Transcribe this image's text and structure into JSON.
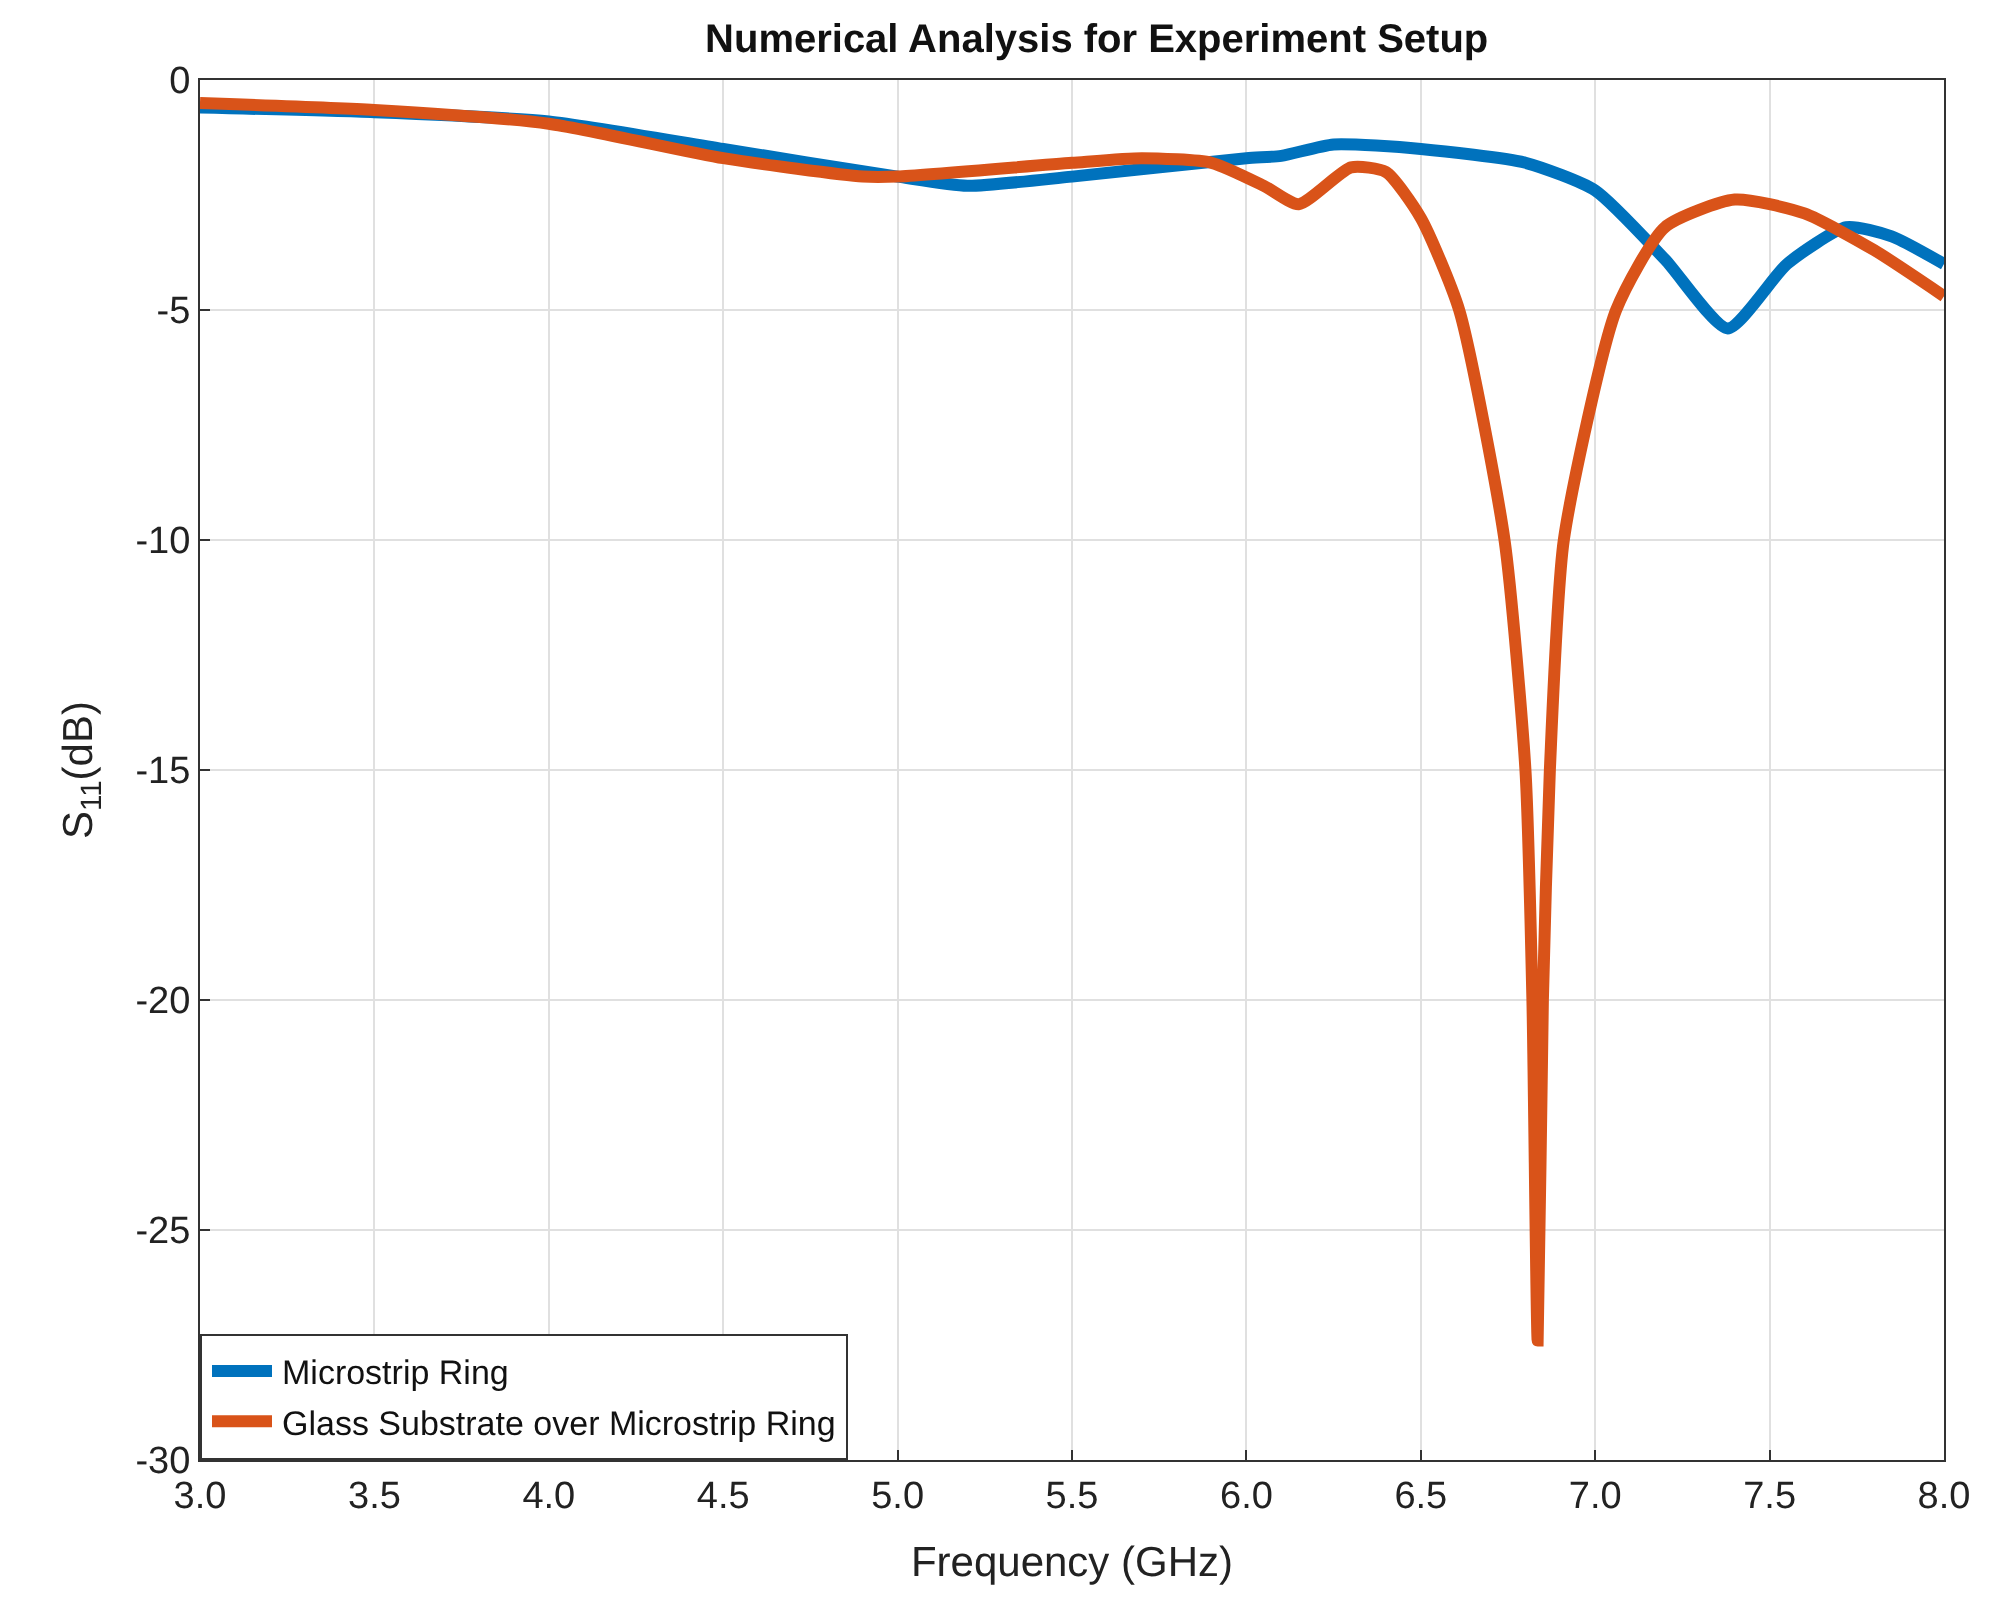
{
  "chart_data": {
    "type": "line",
    "title": "Numerical Analysis for Experiment Setup",
    "xlabel": "Frequency (GHz)",
    "ylabel": "S$_{11}$(dB)",
    "xlim": [
      3,
      8
    ],
    "ylim": [
      -30,
      0
    ],
    "xticks": [
      {
        "value": 3,
        "label": "3.0"
      },
      {
        "value": 3.5,
        "label": "3.5"
      },
      {
        "value": 4,
        "label": "4.0"
      },
      {
        "value": 4.5,
        "label": "4.5"
      },
      {
        "value": 5,
        "label": "5.0"
      },
      {
        "value": 5.5,
        "label": "5.5"
      },
      {
        "value": 6,
        "label": "6.0"
      },
      {
        "value": 6.5,
        "label": "6.5"
      },
      {
        "value": 7,
        "label": "7.0"
      },
      {
        "value": 7.5,
        "label": "7.5"
      },
      {
        "value": 8,
        "label": "8.0"
      }
    ],
    "yticks": [
      -30,
      -25,
      -20,
      -15,
      -10,
      -5,
      0
    ],
    "grid": true,
    "legend": "bottom left",
    "line_style": "solid",
    "marker": "none",
    "series": [
      {
        "name": "Microstrip Ring",
        "color": "#0072bd",
        "x": [
          3.0,
          3.5,
          4.0,
          4.5,
          5.0,
          5.2,
          5.5,
          6.0,
          6.1,
          6.25,
          6.5,
          6.8,
          7.0,
          7.2,
          7.38,
          7.55,
          7.72,
          7.85,
          8.0
        ],
        "values": [
          -0.6,
          -0.7,
          -0.9,
          -1.5,
          -2.1,
          -2.3,
          -2.1,
          -1.7,
          -1.65,
          -1.4,
          -1.5,
          -1.8,
          -2.4,
          -3.9,
          -5.4,
          -4.0,
          -3.2,
          -3.4,
          -4.0
        ]
      },
      {
        "name": "Glass Substrate over Microstrip Ring",
        "color": "#d95319",
        "x": [
          3.0,
          3.5,
          4.0,
          4.5,
          4.9,
          5.0,
          5.5,
          5.7,
          5.9,
          6.05,
          6.15,
          6.3,
          6.4,
          6.5,
          6.61,
          6.74,
          6.8,
          6.82,
          6.835,
          6.85,
          6.87,
          6.91,
          7.06,
          7.2,
          7.4,
          7.6,
          7.8,
          8.0
        ],
        "values": [
          -0.5,
          -0.65,
          -0.95,
          -1.7,
          -2.1,
          -2.1,
          -1.8,
          -1.7,
          -1.8,
          -2.3,
          -2.7,
          -1.9,
          -2.0,
          -3.0,
          -5.0,
          -10.0,
          -15.0,
          -20.0,
          -27.4,
          -20.0,
          -15.0,
          -10.0,
          -5.0,
          -3.2,
          -2.6,
          -2.9,
          -3.7,
          -4.7
        ]
      }
    ]
  }
}
